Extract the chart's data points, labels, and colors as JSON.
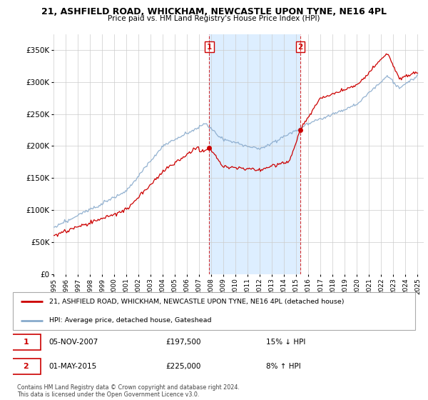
{
  "title": "21, ASHFIELD ROAD, WHICKHAM, NEWCASTLE UPON TYNE, NE16 4PL",
  "subtitle": "Price paid vs. HM Land Registry's House Price Index (HPI)",
  "ylabel_ticks": [
    "£0",
    "£50K",
    "£100K",
    "£150K",
    "£200K",
    "£250K",
    "£300K",
    "£350K"
  ],
  "ytick_values": [
    0,
    50000,
    100000,
    150000,
    200000,
    250000,
    300000,
    350000
  ],
  "ylim": [
    0,
    375000
  ],
  "xlim_start": 1995.0,
  "xlim_end": 2025.5,
  "sale1_x": 2007.84,
  "sale1_y": 197500,
  "sale2_x": 2015.33,
  "sale2_y": 225000,
  "sale_color": "#cc0000",
  "hpi_color": "#88aacc",
  "vline_color": "#cc0000",
  "shade_color": "#ddeeff",
  "legend_label_red": "21, ASHFIELD ROAD, WHICKHAM, NEWCASTLE UPON TYNE, NE16 4PL (detached house)",
  "legend_label_blue": "HPI: Average price, detached house, Gateshead",
  "note1_date": "05-NOV-2007",
  "note1_price": "£197,500",
  "note1_hpi": "15% ↓ HPI",
  "note2_date": "01-MAY-2015",
  "note2_price": "£225,000",
  "note2_hpi": "8% ↑ HPI",
  "copyright": "Contains HM Land Registry data © Crown copyright and database right 2024.\nThis data is licensed under the Open Government Licence v3.0.",
  "bg_color": "#ffffff",
  "grid_color": "#cccccc"
}
